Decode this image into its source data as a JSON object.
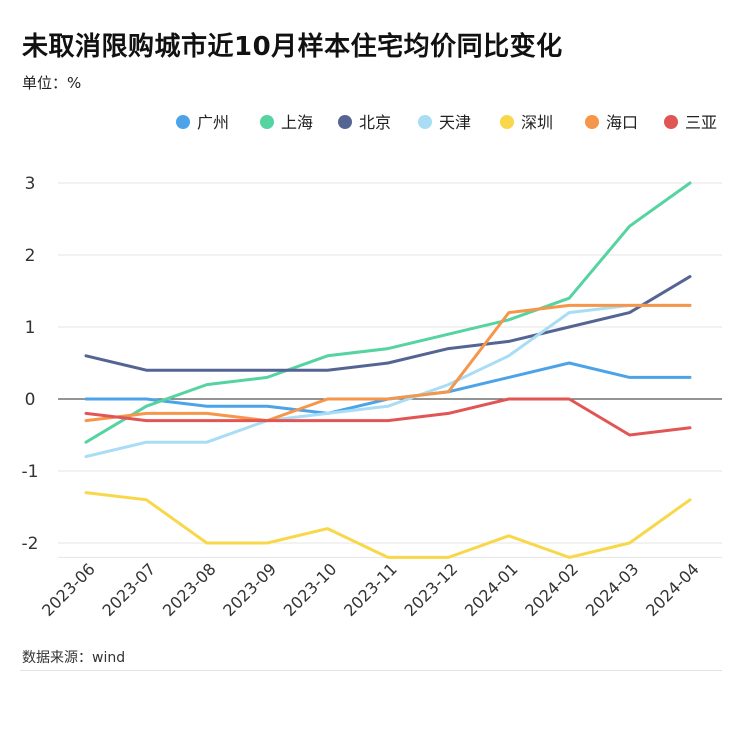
{
  "header": {
    "title": "未取消限购城市近10月样本住宅均价同比变化",
    "unit_label": "单位：",
    "unit_value": "%"
  },
  "footer": {
    "source": "数据来源：wind"
  },
  "chart_data": {
    "type": "line",
    "title": "未取消限购城市近10月样本住宅均价同比变化",
    "ylabel": "单位：%",
    "xlabel": "",
    "ylim": [
      -2.2,
      3
    ],
    "yticks": [
      -2,
      -1,
      0,
      1,
      2,
      3
    ],
    "grid": true,
    "legend_position": "top-right",
    "categories": [
      "2023-06",
      "2023-07",
      "2023-08",
      "2023-09",
      "2023-10",
      "2023-11",
      "2023-12",
      "2024-01",
      "2024-02",
      "2024-03",
      "2024-04"
    ],
    "series": [
      {
        "name": "广州",
        "color": "#4DA3E8",
        "values": [
          0.0,
          0.0,
          -0.1,
          -0.1,
          -0.2,
          0.0,
          0.1,
          0.3,
          0.5,
          0.3,
          0.3
        ]
      },
      {
        "name": "上海",
        "color": "#55D3A0",
        "values": [
          -0.6,
          -0.1,
          0.2,
          0.3,
          0.6,
          0.7,
          0.9,
          1.1,
          1.4,
          2.4,
          3.0
        ]
      },
      {
        "name": "北京",
        "color": "#556593",
        "values": [
          0.6,
          0.4,
          0.4,
          0.4,
          0.4,
          0.5,
          0.7,
          0.8,
          1.0,
          1.2,
          1.7
        ]
      },
      {
        "name": "天津",
        "color": "#A8DDF5",
        "values": [
          -0.8,
          -0.6,
          -0.6,
          -0.3,
          -0.2,
          -0.1,
          0.2,
          0.6,
          1.2,
          1.3,
          1.3
        ]
      },
      {
        "name": "深圳",
        "color": "#F8D84A",
        "values": [
          -1.3,
          -1.4,
          -2.0,
          -2.0,
          -1.8,
          -2.2,
          -2.2,
          -1.9,
          -2.2,
          -2.0,
          -1.4
        ]
      },
      {
        "name": "海口",
        "color": "#F5964A",
        "values": [
          -0.3,
          -0.2,
          -0.2,
          -0.3,
          0.0,
          0.0,
          0.1,
          1.2,
          1.3,
          1.3,
          1.3
        ]
      },
      {
        "name": "三亚",
        "color": "#E25555",
        "values": [
          -0.2,
          -0.3,
          -0.3,
          -0.3,
          -0.3,
          -0.3,
          -0.2,
          0.0,
          0.0,
          -0.5,
          -0.4
        ]
      }
    ]
  }
}
